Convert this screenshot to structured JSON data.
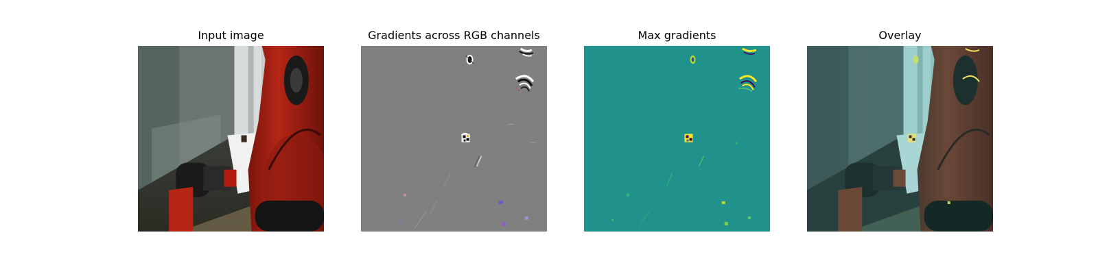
{
  "figure": {
    "panels": [
      {
        "title": "Input image"
      },
      {
        "title": "Gradients across RGB channels"
      },
      {
        "title": "Max gradients"
      },
      {
        "title": "Overlay"
      }
    ]
  },
  "colors": {
    "background": "#ffffff",
    "gradient_gray": "#808080",
    "viridis_mid": "#21918c",
    "viridis_high": "#fde725",
    "robot_red": "#a81c10"
  }
}
